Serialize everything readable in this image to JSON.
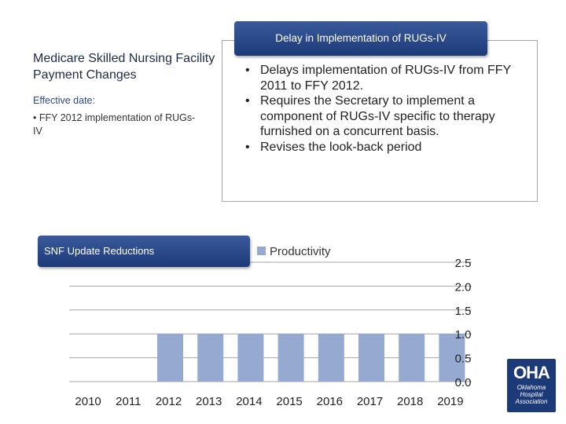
{
  "left": {
    "title": "Medicare Skilled Nursing Facility Payment Changes",
    "effective_label": "Effective date:",
    "effective_item": "• FFY 2012 implementation of RUGs-IV"
  },
  "info": {
    "header": "Delay in Implementation of RUGs-IV",
    "items": [
      "Delays implementation of RUGs-IV from FFY 2011 to FFY 2012.",
      "Requires the Secretary to implement a component of RUGs-IV specific to therapy furnished on a concurrent basis.",
      "Revises the look-back period"
    ]
  },
  "logo": {
    "mark": "OHA",
    "text": "Oklahoma Hospital Association"
  },
  "chart_data": {
    "type": "bar",
    "title": "SNF Update Reductions",
    "categories": [
      "2010",
      "2011",
      "2012",
      "2013",
      "2014",
      "2015",
      "2016",
      "2017",
      "2018",
      "2019"
    ],
    "series": [
      {
        "name": "Productivity",
        "values": [
          0,
          0,
          1.0,
          1.0,
          1.0,
          1.0,
          1.0,
          1.0,
          1.0,
          1.0
        ]
      }
    ],
    "ylim": [
      0,
      2.5
    ],
    "yticks": [
      "0.0",
      "0.5",
      "1.0",
      "1.5",
      "2.0",
      "2.5"
    ],
    "grid": true,
    "legend": "top",
    "colors": {
      "bar": "#95a9d1",
      "grid": "#a6a6a6",
      "header": "#2a4a8a"
    }
  }
}
